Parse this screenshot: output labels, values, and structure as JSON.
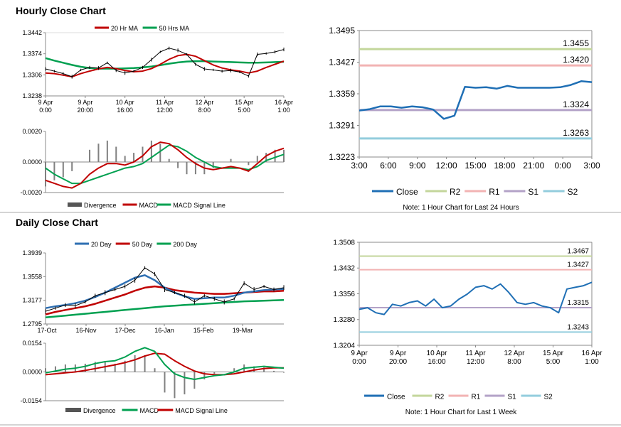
{
  "colors": {
    "red": "#c00000",
    "green": "#00a050",
    "blue": "#2e6fb2",
    "blueLine": "#1f6fb5",
    "r2": "#c3d69b",
    "r1": "#f2b3b3",
    "s1": "#b3a2c7",
    "s2": "#93cddd",
    "bar": "#808080",
    "axis": "#888888"
  },
  "headers": {
    "hourly": "Hourly Close Chart",
    "daily": "Daily Close Chart"
  },
  "notes": {
    "hourly": "Note: 1 Hour Chart for Last 24 Hours",
    "daily": "Note: 1 Hour Chart for Last 1 Week"
  },
  "chart_data": [
    {
      "id": "hourly-price",
      "type": "line",
      "title": "",
      "legend": [
        "20 Hr MA",
        "50 Hrs MA"
      ],
      "ylim": [
        1.3238,
        1.3442
      ],
      "yticks": [
        "1.3442",
        "1.3374",
        "1.3306",
        "1.3238"
      ],
      "xticks": [
        [
          "9 Apr",
          "0:00"
        ],
        [
          "9 Apr",
          "20:00"
        ],
        [
          "10 Apr",
          "16:00"
        ],
        [
          "11 Apr",
          "12:00"
        ],
        [
          "12 Apr",
          "8:00"
        ],
        [
          "15 Apr",
          "5:00"
        ],
        [
          "16 Apr",
          "1:00"
        ]
      ],
      "series": [
        {
          "name": "Close",
          "values": [
            1.3325,
            1.3318,
            1.331,
            1.33,
            1.3322,
            1.333,
            1.3328,
            1.3345,
            1.332,
            1.3312,
            1.3318,
            1.333,
            1.3355,
            1.338,
            1.3392,
            1.3385,
            1.3372,
            1.334,
            1.3325,
            1.3322,
            1.3318,
            1.332,
            1.3315,
            1.3302,
            1.3372,
            1.3375,
            1.338,
            1.3388
          ]
        },
        {
          "name": "20 Hr MA",
          "values": [
            1.3312,
            1.331,
            1.3305,
            1.33,
            1.331,
            1.3318,
            1.3325,
            1.333,
            1.3326,
            1.332,
            1.3316,
            1.3318,
            1.3326,
            1.334,
            1.3356,
            1.3368,
            1.3372,
            1.3366,
            1.3352,
            1.3338,
            1.3328,
            1.3322,
            1.3318,
            1.3312,
            1.3318,
            1.333,
            1.334,
            1.335
          ]
        },
        {
          "name": "50 Hrs MA",
          "values": [
            1.336,
            1.3352,
            1.3345,
            1.3338,
            1.3332,
            1.3328,
            1.3326,
            1.3326,
            1.3326,
            1.3327,
            1.3328,
            1.333,
            1.3333,
            1.3337,
            1.3342,
            1.3346,
            1.3349,
            1.335,
            1.335,
            1.3349,
            1.3348,
            1.3347,
            1.3346,
            1.3345,
            1.3345,
            1.3346,
            1.3347,
            1.3348
          ]
        }
      ]
    },
    {
      "id": "hourly-macd",
      "type": "line",
      "legend": [
        "Divergence",
        "MACD",
        "MACD Signal Line"
      ],
      "ylim": [
        -0.002,
        0.002
      ],
      "yticks": [
        "0.0020",
        "0.0000",
        "-0.0020"
      ],
      "series": [
        {
          "name": "MACD",
          "values": [
            -0.0012,
            -0.0014,
            -0.0016,
            -0.0017,
            -0.0014,
            -0.0008,
            -0.0004,
            -0.0001,
            -0.0001,
            -0.0002,
            0.0,
            0.0004,
            0.001,
            0.0013,
            0.0012,
            0.0008,
            0.0003,
            -0.0001,
            -0.0004,
            -0.0005,
            -0.0004,
            -0.0003,
            -0.0004,
            -0.0006,
            -0.0001,
            0.0004,
            0.0007,
            0.0009
          ]
        },
        {
          "name": "MACD Signal Line",
          "values": [
            -0.0004,
            -0.0008,
            -0.0011,
            -0.0014,
            -0.0014,
            -0.0012,
            -0.001,
            -0.0008,
            -0.0006,
            -0.0004,
            -0.0003,
            -0.0001,
            0.0003,
            0.0007,
            0.0011,
            0.001,
            0.0007,
            0.0003,
            0.0,
            -0.0003,
            -0.0004,
            -0.0004,
            -0.0004,
            -0.0005,
            -0.0003,
            0.0001,
            0.0003,
            0.0005
          ]
        }
      ]
    },
    {
      "id": "hourly-24h",
      "type": "line",
      "legend": [
        "Close",
        "R2",
        "R1",
        "S1",
        "S2"
      ],
      "ylim": [
        1.3223,
        1.3495
      ],
      "yticks": [
        "1.3495",
        "1.3427",
        "1.3359",
        "1.3291",
        "1.3223"
      ],
      "xticks": [
        "3:00",
        "6:00",
        "9:00",
        "12:00",
        "15:00",
        "18:00",
        "21:00",
        "0:00",
        "3:00"
      ],
      "levels": [
        {
          "name": "R2",
          "value": 1.3455,
          "label": "1.3455"
        },
        {
          "name": "R1",
          "value": 1.342,
          "label": "1.3420"
        },
        {
          "name": "S1",
          "value": 1.3324,
          "label": "1.3324"
        },
        {
          "name": "S2",
          "value": 1.3263,
          "label": "1.3263"
        }
      ],
      "series": [
        {
          "name": "Close",
          "values": [
            1.3323,
            1.3326,
            1.3332,
            1.3332,
            1.3329,
            1.3332,
            1.333,
            1.3325,
            1.3305,
            1.3312,
            1.3374,
            1.3372,
            1.3373,
            1.337,
            1.3376,
            1.3372,
            1.3372,
            1.3372,
            1.3372,
            1.3373,
            1.3378,
            1.3386,
            1.3384
          ]
        }
      ]
    },
    {
      "id": "daily-price",
      "type": "line",
      "legend": [
        "20 Day",
        "50 Day",
        "200 Day"
      ],
      "ylim": [
        1.2795,
        1.3939
      ],
      "yticks": [
        "1.3939",
        "1.3558",
        "1.3177",
        "1.2795"
      ],
      "xticks": [
        "17-Oct",
        "16-Nov",
        "17-Dec",
        "16-Jan",
        "15-Feb",
        "19-Mar"
      ],
      "series": [
        {
          "name": "Close",
          "values": [
            1.3,
            1.305,
            1.31,
            1.309,
            1.315,
            1.325,
            1.33,
            1.335,
            1.34,
            1.35,
            1.37,
            1.36,
            1.335,
            1.33,
            1.325,
            1.315,
            1.325,
            1.32,
            1.315,
            1.32,
            1.345,
            1.335,
            1.34,
            1.335,
            1.338
          ]
        },
        {
          "name": "20 Day",
          "values": [
            1.305,
            1.308,
            1.31,
            1.313,
            1.317,
            1.323,
            1.33,
            1.338,
            1.346,
            1.354,
            1.358,
            1.35,
            1.338,
            1.33,
            1.324,
            1.32,
            1.321,
            1.322,
            1.322,
            1.325,
            1.33,
            1.332,
            1.334,
            1.335,
            1.336
          ]
        },
        {
          "name": "50 Day",
          "values": [
            1.295,
            1.299,
            1.302,
            1.305,
            1.308,
            1.312,
            1.317,
            1.322,
            1.327,
            1.333,
            1.338,
            1.34,
            1.338,
            1.334,
            1.332,
            1.33,
            1.329,
            1.328,
            1.328,
            1.329,
            1.33,
            1.331,
            1.332,
            1.332,
            1.333
          ]
        },
        {
          "name": "200 Day",
          "values": [
            1.29,
            1.2915,
            1.293,
            1.2945,
            1.296,
            1.2975,
            1.299,
            1.3005,
            1.302,
            1.3035,
            1.305,
            1.3065,
            1.308,
            1.309,
            1.31,
            1.311,
            1.312,
            1.313,
            1.314,
            1.315,
            1.316,
            1.3165,
            1.317,
            1.3175,
            1.318
          ]
        }
      ]
    },
    {
      "id": "daily-macd",
      "type": "line",
      "legend": [
        "Divergence",
        "MACD",
        "MACD Signal Line"
      ],
      "ylim": [
        -0.0154,
        0.0154
      ],
      "yticks": [
        "0.0154",
        "0.0000",
        "-0.0154"
      ],
      "series": [
        {
          "name": "MACD",
          "values": [
            -0.0005,
            0.0005,
            0.0015,
            0.002,
            0.003,
            0.0045,
            0.0055,
            0.006,
            0.008,
            0.011,
            0.013,
            0.011,
            0.004,
            -0.001,
            -0.003,
            -0.004,
            -0.003,
            -0.002,
            -0.0015,
            0.0,
            0.002,
            0.0025,
            0.003,
            0.0025,
            0.002
          ]
        },
        {
          "name": "MACD Signal Line",
          "values": [
            -0.0015,
            -0.001,
            -0.0005,
            0.0,
            0.0008,
            0.0018,
            0.0028,
            0.0038,
            0.005,
            0.0065,
            0.0085,
            0.01,
            0.0095,
            0.006,
            0.003,
            0.0005,
            -0.001,
            -0.0015,
            -0.0015,
            -0.001,
            0.0,
            0.001,
            0.0018,
            0.0022,
            0.0022
          ]
        }
      ]
    },
    {
      "id": "weekly",
      "type": "line",
      "legend": [
        "Close",
        "R2",
        "R1",
        "S1",
        "S2"
      ],
      "ylim": [
        1.3204,
        1.3508
      ],
      "yticks": [
        "1.3508",
        "1.3432",
        "1.3356",
        "1.3280",
        "1.3204"
      ],
      "xticks": [
        [
          "9 Apr",
          "0:00"
        ],
        [
          "9 Apr",
          "20:00"
        ],
        [
          "10 Apr",
          "16:00"
        ],
        [
          "11 Apr",
          "12:00"
        ],
        [
          "12 Apr",
          "8:00"
        ],
        [
          "15 Apr",
          "5:00"
        ],
        [
          "16 Apr",
          "1:00"
        ]
      ],
      "levels": [
        {
          "name": "R2",
          "value": 1.3467,
          "label": "1.3467"
        },
        {
          "name": "R1",
          "value": 1.3427,
          "label": "1.3427"
        },
        {
          "name": "S1",
          "value": 1.3315,
          "label": "1.3315"
        },
        {
          "name": "S2",
          "value": 1.3243,
          "label": "1.3243"
        }
      ],
      "series": [
        {
          "name": "Close",
          "values": [
            1.331,
            1.3315,
            1.33,
            1.3295,
            1.3325,
            1.332,
            1.333,
            1.3335,
            1.332,
            1.334,
            1.3315,
            1.332,
            1.334,
            1.3355,
            1.3375,
            1.338,
            1.337,
            1.3385,
            1.336,
            1.333,
            1.3325,
            1.333,
            1.332,
            1.3315,
            1.33,
            1.337,
            1.3375,
            1.338,
            1.339
          ]
        }
      ]
    }
  ]
}
